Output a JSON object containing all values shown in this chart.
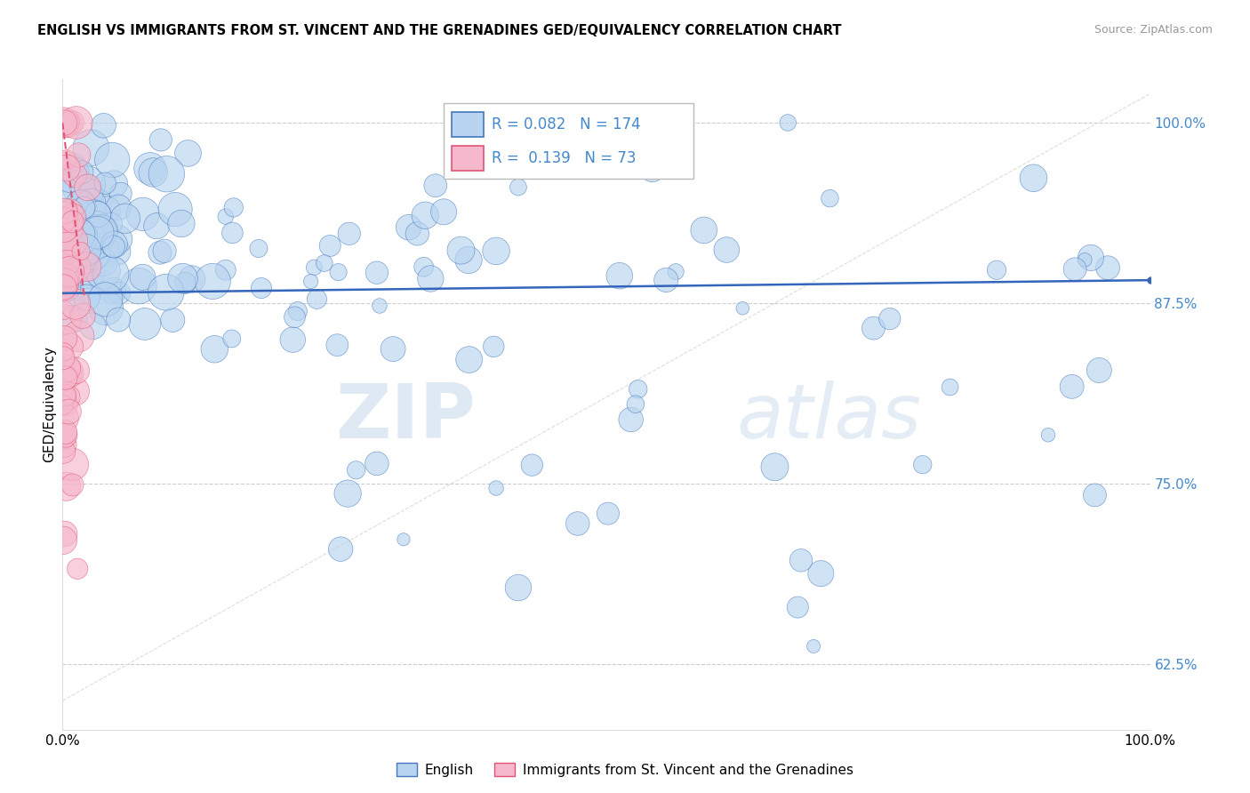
{
  "title": "ENGLISH VS IMMIGRANTS FROM ST. VINCENT AND THE GRENADINES GED/EQUIVALENCY CORRELATION CHART",
  "source": "Source: ZipAtlas.com",
  "ylabel": "GED/Equivalency",
  "legend_english": "English",
  "legend_immigrants": "Immigrants from St. Vincent and the Grenadines",
  "r_english": 0.082,
  "n_english": 174,
  "r_immigrants": 0.139,
  "n_immigrants": 73,
  "blue_fill": "#b8d4f0",
  "blue_edge": "#4477bb",
  "pink_fill": "#f5b8cc",
  "pink_edge": "#e05575",
  "blue_line": "#3366bb",
  "pink_line": "#e05575",
  "grid_color": "#cccccc",
  "right_tick_color": "#4488cc",
  "y_ticks": [
    62.5,
    75.0,
    87.5,
    100.0
  ],
  "y_min": 58.0,
  "y_max": 103.0,
  "x_min": 0.0,
  "x_max": 100.0,
  "blue_trend_x0": 0.0,
  "blue_trend_y0": 88.2,
  "blue_trend_x1": 100.0,
  "blue_trend_y1": 89.1,
  "pink_trend_x0": 0.0,
  "pink_trend_y0": 100.0,
  "pink_trend_x1": 2.0,
  "pink_trend_y1": 88.0,
  "watermark_zip": "ZIP",
  "watermark_atlas": "atlas",
  "watermark_color_zip": "#c8d8e8",
  "watermark_color_atlas": "#c8d8e8"
}
